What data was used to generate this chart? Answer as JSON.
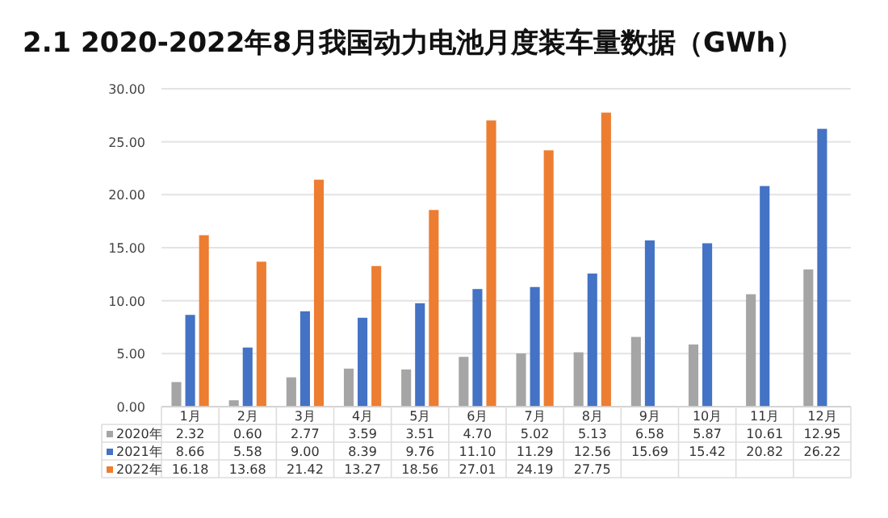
{
  "chart_data": {
    "type": "bar",
    "title": "2.1 2020-2022年8月我国动力电池月度装车量数据（GWh）",
    "categories": [
      "1月",
      "2月",
      "3月",
      "4月",
      "5月",
      "6月",
      "7月",
      "8月",
      "9月",
      "10月",
      "11月",
      "12月"
    ],
    "series": [
      {
        "name": "2020年",
        "color": "#a5a5a5",
        "values": [
          2.32,
          0.6,
          2.77,
          3.59,
          3.51,
          4.7,
          5.02,
          5.13,
          6.58,
          5.87,
          10.61,
          12.95
        ],
        "value_labels": [
          "2.32",
          "0.60",
          "2.77",
          "3.59",
          "3.51",
          "4.70",
          "5.02",
          "5.13",
          "6.58",
          "5.87",
          "10.61",
          "12.95"
        ]
      },
      {
        "name": "2021年",
        "color": "#4472c4",
        "values": [
          8.66,
          5.58,
          9.0,
          8.39,
          9.76,
          11.1,
          11.29,
          12.56,
          15.69,
          15.42,
          20.82,
          26.22
        ],
        "value_labels": [
          "8.66",
          "5.58",
          "9.00",
          "8.39",
          "9.76",
          "11.10",
          "11.29",
          "12.56",
          "15.69",
          "15.42",
          "20.82",
          "26.22"
        ]
      },
      {
        "name": "2022年",
        "color": "#ed7d31",
        "values": [
          16.18,
          13.68,
          21.42,
          13.27,
          18.56,
          27.01,
          24.19,
          27.75,
          null,
          null,
          null,
          null
        ],
        "value_labels": [
          "16.18",
          "13.68",
          "21.42",
          "13.27",
          "18.56",
          "27.01",
          "24.19",
          "27.75",
          null,
          null,
          null,
          null
        ]
      }
    ],
    "ylim": [
      0,
      30
    ],
    "yticks": [
      {
        "value": 0,
        "label": "0.00"
      },
      {
        "value": 5,
        "label": "5.00"
      },
      {
        "value": 10,
        "label": "10.00"
      },
      {
        "value": 15,
        "label": "15.00"
      },
      {
        "value": 20,
        "label": "20.00"
      },
      {
        "value": 25,
        "label": "25.00"
      },
      {
        "value": 30,
        "label": "30.00"
      }
    ],
    "grid": "y",
    "legend": "bottom"
  }
}
